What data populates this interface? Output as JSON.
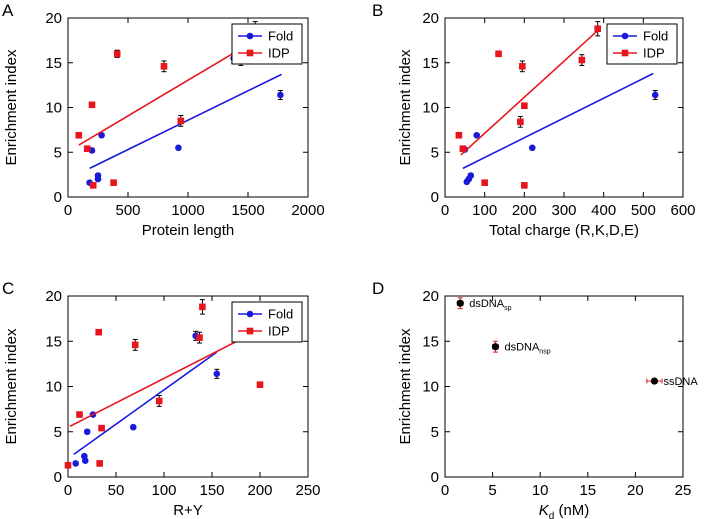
{
  "figure": {
    "panel_A": {
      "letter": "A"
    },
    "panel_B": {
      "letter": "B"
    },
    "panel_C": {
      "letter": "C"
    },
    "panel_D": {
      "letter": "D"
    }
  },
  "colors": {
    "fold": "#1a1adb",
    "idp": "#e8161c",
    "black": "#000000"
  },
  "chart_data": [
    {
      "type": "scatter",
      "panel": "A",
      "xlabel": "Protein length",
      "ylabel": "Enrichment index",
      "xlim": [
        0,
        2000
      ],
      "ylim": [
        0,
        20
      ],
      "xticks": [
        0,
        500,
        1000,
        1500,
        2000
      ],
      "yticks": [
        0,
        5,
        10,
        15,
        20
      ],
      "legend": {
        "placement": "top-right",
        "entries": [
          "Fold",
          "IDP"
        ]
      },
      "series": [
        {
          "name": "Fold",
          "color": "#1a1adb",
          "marker": "circle",
          "points": [
            [
              180,
              1.6
            ],
            [
              200,
              5.2
            ],
            [
              250,
              2.0
            ],
            [
              250,
              2.4
            ],
            [
              280,
              6.9
            ],
            [
              920,
              5.5
            ],
            [
              1380,
              15.5
            ],
            [
              1770,
              11.4
            ]
          ],
          "errors": [
            0.2,
            0.2,
            0.2,
            0.2,
            0.2,
            0.2,
            0.5,
            0.5
          ],
          "fit": [
            [
              180,
              3.2
            ],
            [
              1780,
              13.7
            ]
          ]
        },
        {
          "name": "IDP",
          "color": "#e8161c",
          "marker": "square",
          "points": [
            [
              90,
              6.9
            ],
            [
              160,
              5.4
            ],
            [
              200,
              10.3
            ],
            [
              210,
              1.3
            ],
            [
              380,
              1.6
            ],
            [
              410,
              16.0
            ],
            [
              800,
              14.6
            ],
            [
              940,
              8.5
            ],
            [
              1440,
              15.3
            ],
            [
              1560,
              18.8
            ]
          ],
          "errors": [
            0.2,
            0.2,
            0.2,
            0.2,
            0.2,
            0.4,
            0.6,
            0.6,
            0.6,
            0.8
          ],
          "fit": [
            [
              90,
              5.8
            ],
            [
              1560,
              17.5
            ]
          ]
        }
      ]
    },
    {
      "type": "scatter",
      "panel": "B",
      "xlabel": "Total charge (R,K,D,E)",
      "ylabel": "Enrichment index",
      "xlim": [
        0,
        600
      ],
      "ylim": [
        0,
        20
      ],
      "xticks": [
        0,
        100,
        200,
        300,
        400,
        500,
        600
      ],
      "yticks": [
        0,
        5,
        10,
        15,
        20
      ],
      "legend": {
        "placement": "top-right",
        "entries": [
          "Fold",
          "IDP"
        ]
      },
      "series": [
        {
          "name": "Fold",
          "color": "#1a1adb",
          "marker": "circle",
          "points": [
            [
              50,
              5.3
            ],
            [
              55,
              1.7
            ],
            [
              60,
              2.0
            ],
            [
              65,
              2.4
            ],
            [
              80,
              6.9
            ],
            [
              220,
              5.5
            ],
            [
              430,
              15.5
            ],
            [
              530,
              11.4
            ]
          ],
          "errors": [
            0.2,
            0.2,
            0.2,
            0.2,
            0.2,
            0.2,
            0.5,
            0.5
          ],
          "fit": [
            [
              45,
              3.2
            ],
            [
              525,
              13.8
            ]
          ]
        },
        {
          "name": "IDP",
          "color": "#e8161c",
          "marker": "square",
          "points": [
            [
              35,
              6.9
            ],
            [
              45,
              5.4
            ],
            [
              100,
              1.6
            ],
            [
              135,
              16.0
            ],
            [
              190,
              8.4
            ],
            [
              195,
              14.6
            ],
            [
              200,
              10.2
            ],
            [
              200,
              1.3
            ],
            [
              345,
              15.3
            ],
            [
              385,
              18.8
            ]
          ],
          "errors": [
            0.2,
            0.2,
            0.2,
            0.2,
            0.6,
            0.6,
            0.2,
            0.2,
            0.6,
            0.8
          ],
          "fit": [
            [
              40,
              4.7
            ],
            [
              385,
              18.6
            ]
          ]
        }
      ]
    },
    {
      "type": "scatter",
      "panel": "C",
      "xlabel": "R+Y",
      "ylabel": "Enrichment index",
      "xlim": [
        0,
        250
      ],
      "ylim": [
        0,
        20
      ],
      "xticks": [
        0,
        50,
        100,
        150,
        200,
        250
      ],
      "yticks": [
        0,
        5,
        10,
        15,
        20
      ],
      "legend": {
        "placement": "top-right",
        "entries": [
          "Fold",
          "IDP"
        ]
      },
      "series": [
        {
          "name": "Fold",
          "color": "#1a1adb",
          "marker": "circle",
          "points": [
            [
              8,
              1.5
            ],
            [
              17,
              2.3
            ],
            [
              18,
              1.8
            ],
            [
              20,
              5.0
            ],
            [
              26,
              6.9
            ],
            [
              68,
              5.5
            ],
            [
              133,
              15.6
            ],
            [
              155,
              11.4
            ]
          ],
          "errors": [
            0.2,
            0.2,
            0.2,
            0.2,
            0.2,
            0.2,
            0.5,
            0.5
          ],
          "fit": [
            [
              6,
              2.5
            ],
            [
              155,
              13.8
            ]
          ]
        },
        {
          "name": "IDP",
          "color": "#e8161c",
          "marker": "square",
          "points": [
            [
              0,
              1.3
            ],
            [
              12,
              6.9
            ],
            [
              32,
              16.0
            ],
            [
              33,
              1.5
            ],
            [
              35,
              5.4
            ],
            [
              70,
              14.6
            ],
            [
              95,
              8.4
            ],
            [
              137,
              15.4
            ],
            [
              140,
              18.8
            ],
            [
              200,
              10.2
            ]
          ],
          "errors": [
            0.2,
            0.2,
            0.3,
            0.2,
            0.2,
            0.6,
            0.6,
            0.6,
            0.8,
            0.2
          ],
          "fit": [
            [
              2,
              5.6
            ],
            [
              200,
              16.3
            ]
          ]
        }
      ]
    },
    {
      "type": "scatter",
      "panel": "D",
      "xlabel": "K",
      "xlabel_sub": "d",
      "xlabel_unit": " (nM)",
      "ylabel": "Enrichment index",
      "xlim": [
        0,
        25
      ],
      "ylim": [
        0,
        20
      ],
      "xticks": [
        0,
        5,
        10,
        15,
        20,
        25
      ],
      "yticks": [
        0,
        5,
        10,
        15,
        20
      ],
      "points": [
        {
          "x": 1.6,
          "y": 19.2,
          "xerr": 0.3,
          "yerr": 0.6,
          "label": "dsDNA",
          "sub": "sp"
        },
        {
          "x": 5.3,
          "y": 14.4,
          "xerr": 0.3,
          "yerr": 0.6,
          "label": "dsDNA",
          "sub": "nsp"
        },
        {
          "x": 22.0,
          "y": 10.6,
          "xerr": 0.8,
          "yerr": 0.2,
          "label": "ssDNA",
          "sub": ""
        }
      ]
    }
  ]
}
